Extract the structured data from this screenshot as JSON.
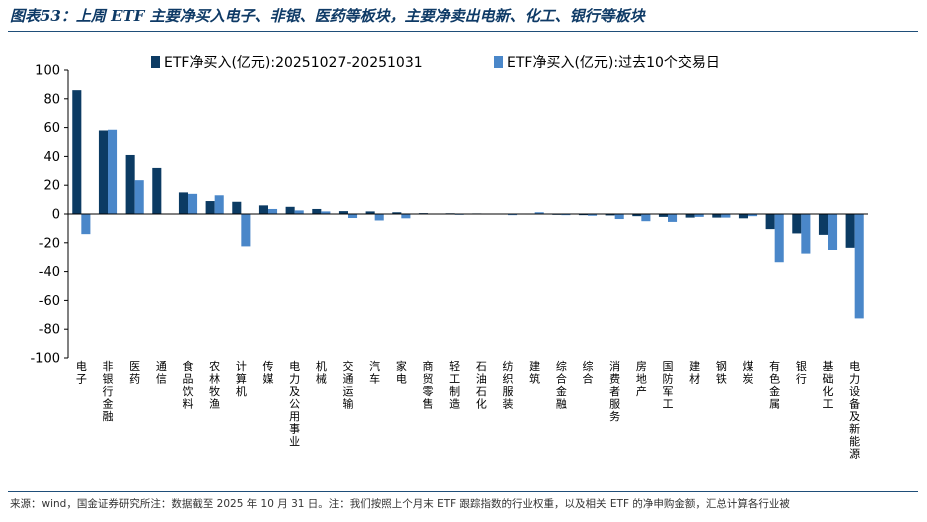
{
  "header": {
    "title": "图表53：上周 ETF 主要净买入电子、非银、医药等板块，主要净卖出电新、化工、银行等板块"
  },
  "footer": {
    "source": "来源：wind，国金证券研究所注：数据截至 2025 年 10 月 31 日。注：我们按照上个月末 ETF 跟踪指数的行业权重，以及相关 ETF 的净申购金额，汇总计算各行业被"
  },
  "colors": {
    "series1": "#0c3b63",
    "series2": "#4a87c9"
  },
  "chart_data": {
    "type": "bar",
    "title": "",
    "xlabel": "",
    "ylabel": "",
    "ylim": [
      -100,
      100
    ],
    "yticks": [
      100,
      80,
      60,
      40,
      20,
      0,
      -20,
      -40,
      -60,
      -80,
      -100
    ],
    "legend_position": "top",
    "grid": false,
    "categories": [
      "电子",
      "非银行金融",
      "医药",
      "通信",
      "食品饮料",
      "农林牧渔",
      "计算机",
      "传媒",
      "电力及公用事业",
      "机械",
      "交通运输",
      "汽车",
      "家电",
      "商贸零售",
      "轻工制造",
      "石油石化",
      "纺织服装",
      "建筑",
      "综合金融",
      "综合",
      "消费者服务",
      "房地产",
      "国防军工",
      "建材",
      "钢铁",
      "煤炭",
      "有色金属",
      "银行",
      "基础化工",
      "电力设备及新能源"
    ],
    "series": [
      {
        "name": "ETF净买入(亿元):20251027-20251031",
        "values": [
          86,
          58,
          41,
          32,
          15,
          9,
          8.5,
          6,
          5,
          3.5,
          2,
          1.8,
          1.2,
          0.6,
          0.5,
          0.4,
          0.3,
          0.2,
          -0.2,
          -0.8,
          -1,
          -1.5,
          -2,
          -2.5,
          -2.5,
          -3,
          -10.5,
          -13.5,
          -14.5,
          -23.5
        ]
      },
      {
        "name": "ETF净买入(亿元):过去10个交易日",
        "values": [
          -14,
          58.5,
          23.5,
          0.3,
          14,
          13,
          -22.5,
          3.5,
          2.5,
          1.8,
          -2.8,
          -4.5,
          -3,
          0.3,
          -0.5,
          0.2,
          -0.8,
          1.2,
          -0.8,
          -1.2,
          -3.5,
          -5,
          -5.5,
          -2,
          -2.5,
          -1.5,
          -33.5,
          -27.5,
          -25,
          -72.5
        ]
      }
    ]
  }
}
